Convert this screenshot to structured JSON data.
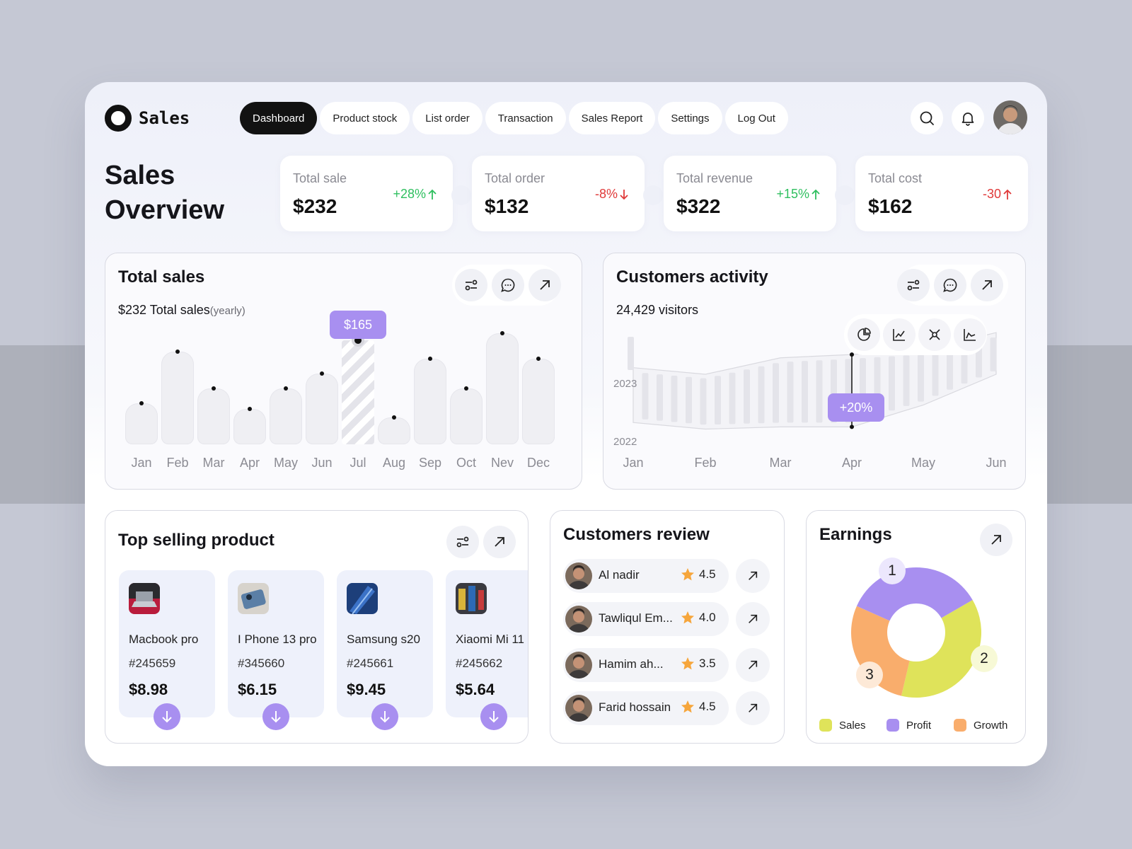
{
  "header": {
    "logo_text": "Sales",
    "nav": [
      "Dashboard",
      "Product stock",
      "List order",
      "Transaction",
      "Sales Report",
      "Settings",
      "Log Out"
    ],
    "active_nav": "Dashboard"
  },
  "overview": {
    "title_line1": "Sales",
    "title_line2": "Overview",
    "stats": [
      {
        "label": "Total sale",
        "value": "$232",
        "delta": "+28%",
        "direction": "up"
      },
      {
        "label": "Total order",
        "value": "$132",
        "delta": "-8%",
        "direction": "down"
      },
      {
        "label": "Total revenue",
        "value": "$322",
        "delta": "+15%",
        "direction": "up"
      },
      {
        "label": "Total cost",
        "value": "$162",
        "delta": "-30",
        "direction": "up-red"
      }
    ]
  },
  "total_sales": {
    "title": "Total sales",
    "amount": "$232 Total sales",
    "period": "(yearly)",
    "tooltip": "$165"
  },
  "customers_activity": {
    "title": "Customers activity",
    "visitors": "24,429 visitors",
    "badge": "+20%",
    "year_top": "2023",
    "year_bottom": "2022",
    "months": [
      "Jan",
      "Feb",
      "Mar",
      "Apr",
      "May",
      "Jun"
    ]
  },
  "top_selling": {
    "title": "Top selling product",
    "products": [
      {
        "name": "Macbook pro",
        "id": "#245659",
        "price": "$8.98"
      },
      {
        "name": "I Phone 13 pro",
        "id": "#345660",
        "price": "$6.15"
      },
      {
        "name": "Samsung s20",
        "id": "#245661",
        "price": "$9.45"
      },
      {
        "name": "Xiaomi Mi 11",
        "id": "#245662",
        "price": "$5.64"
      }
    ]
  },
  "reviews": {
    "title": "Customers review",
    "items": [
      {
        "name": "Al nadir",
        "rating": "4.5"
      },
      {
        "name": "Tawliqul Em...",
        "rating": "4.0"
      },
      {
        "name": "Hamim ah...",
        "rating": "3.5"
      },
      {
        "name": "Farid hossain",
        "rating": "4.5"
      }
    ]
  },
  "earnings": {
    "title": "Earnings",
    "badges": [
      "1",
      "2",
      "3"
    ],
    "legend": [
      {
        "label": "Sales",
        "color": "#dfe35a"
      },
      {
        "label": "Profit",
        "color": "#a88ff0"
      },
      {
        "label": "Growth",
        "color": "#f9ad6c"
      }
    ]
  },
  "colors": {
    "accent": "#a88ff0",
    "up": "#2fbf5f",
    "down": "#e03a3a",
    "star": "#f6a63c"
  },
  "chart_data": [
    {
      "type": "bar",
      "categories": [
        "Jan",
        "Feb",
        "Mar",
        "Apr",
        "May",
        "Jun",
        "Jul",
        "Aug",
        "Sep",
        "Oct",
        "Nev",
        "Dec"
      ],
      "values": [
        55,
        125,
        75,
        48,
        75,
        95,
        140,
        36,
        115,
        75,
        150,
        115
      ],
      "highlighted": "Jul",
      "highlight_label": "$165"
    },
    {
      "type": "area",
      "categories": [
        "Jan",
        "Feb",
        "Mar",
        "Apr",
        "May",
        "Jun"
      ],
      "series": [
        {
          "name": "2023",
          "values": [
            66,
            60,
            75,
            78,
            82,
            98
          ]
        },
        {
          "name": "2022",
          "values": [
            16,
            10,
            12,
            12,
            32,
            60
          ]
        }
      ],
      "highlighted": "Apr",
      "highlight_label": "+20%"
    },
    {
      "type": "pie",
      "donut": true,
      "labels": [
        "Sales",
        "Profit",
        "Growth"
      ],
      "values": [
        37,
        35,
        28
      ]
    }
  ]
}
